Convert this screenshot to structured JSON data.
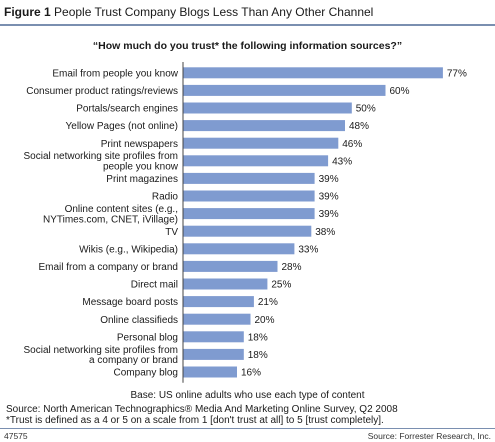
{
  "header": {
    "figure_label": "Figure 1",
    "figure_title": "People Trust Company Blogs Less Than Any Other Channel"
  },
  "chart_data": {
    "type": "bar",
    "orientation": "horizontal",
    "title": "“How much do you trust* the following information sources?”",
    "xlim": [
      0,
      80
    ],
    "grid": false,
    "bar_color": "#7f9bd0",
    "value_suffix": "%",
    "categories": [
      [
        "Email from people you know"
      ],
      [
        "Consumer product ratings/reviews"
      ],
      [
        "Portals/search engines"
      ],
      [
        "Yellow Pages (not online)"
      ],
      [
        "Print newspapers"
      ],
      [
        "Social networking site profiles from",
        "people you know"
      ],
      [
        "Print magazines"
      ],
      [
        "Radio"
      ],
      [
        "Online content sites (e.g.,",
        "NYTimes.com, CNET, iVillage)"
      ],
      [
        "TV"
      ],
      [
        "Wikis (e.g., Wikipedia)"
      ],
      [
        "Email from a company or brand"
      ],
      [
        "Direct mail"
      ],
      [
        "Message board posts"
      ],
      [
        "Online classifieds"
      ],
      [
        "Personal blog"
      ],
      [
        "Social networking site profiles from",
        "a company or brand"
      ],
      [
        "Company blog"
      ]
    ],
    "values": [
      77,
      60,
      50,
      48,
      46,
      43,
      39,
      39,
      39,
      38,
      33,
      28,
      25,
      21,
      20,
      18,
      18,
      16
    ]
  },
  "footer": {
    "base": "Base: US online adults who use each type of content",
    "source": "Source: North American Technographics® Media And Marketing Online Survey, Q2 2008",
    "note": "*Trust is defined as a 4 or 5 on a scale from 1 [don't trust at all] to 5 [trust completely].",
    "figure_id": "47575",
    "credit": "Source: Forrester Research, Inc."
  }
}
